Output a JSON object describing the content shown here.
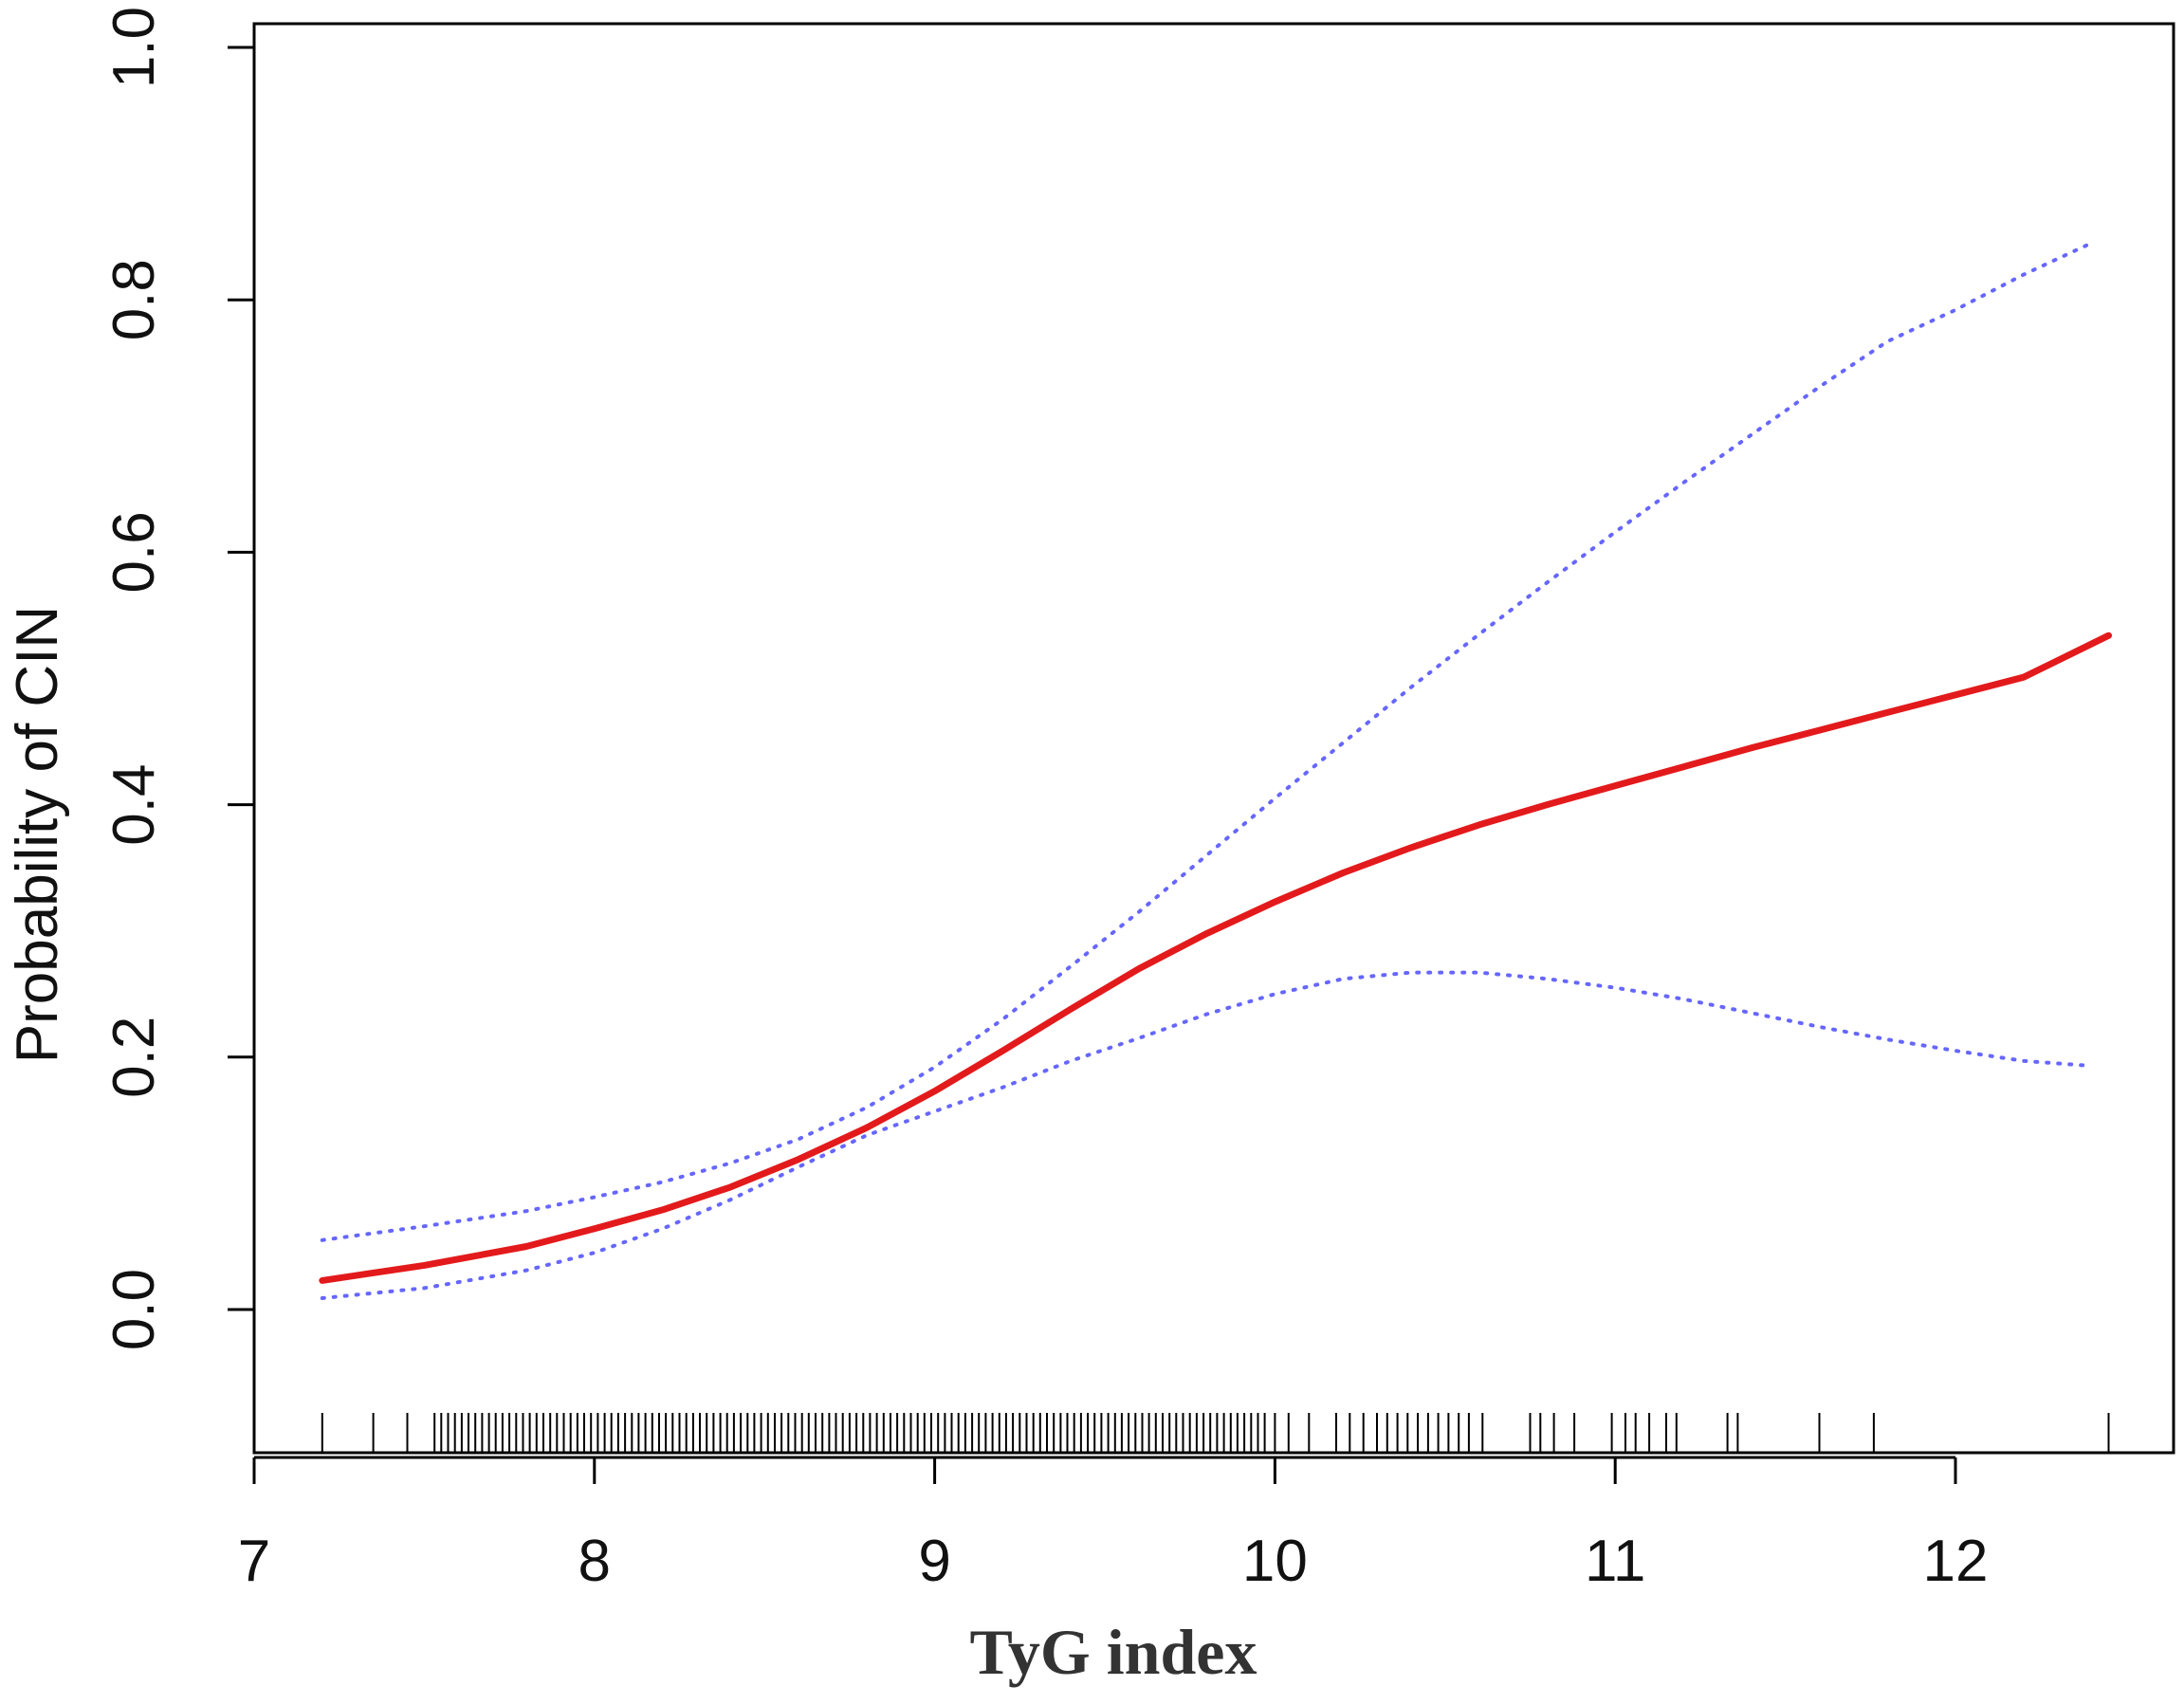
{
  "chart_data": {
    "type": "line",
    "title": "",
    "xlabel": "TyG index",
    "ylabel": "Probability of CIN",
    "xlim": [
      7,
      12.6
    ],
    "ylim": [
      -0.12,
      1.0
    ],
    "x_ticks": [
      7,
      8,
      9,
      10,
      11,
      12
    ],
    "y_ticks": [
      0.0,
      0.2,
      0.4,
      0.6,
      0.8,
      1.0
    ],
    "x_tick_labels": [
      "7",
      "8",
      "9",
      "10",
      "11",
      "12"
    ],
    "y_tick_labels": [
      "0.0",
      "0.2",
      "0.4",
      "0.6",
      "0.8",
      "1.0"
    ],
    "grid": false,
    "legend": "none",
    "colors": {
      "estimate": "#e31a1c",
      "ci": "#6666ff",
      "rug": "#000000",
      "axis": "#000000"
    },
    "series": [
      {
        "role": "estimate",
        "x": [
          7.2,
          7.5,
          7.8,
          8.0,
          8.2,
          8.4,
          8.6,
          8.8,
          9.0,
          9.2,
          9.4,
          9.6,
          9.8,
          10.0,
          10.2,
          10.4,
          10.6,
          10.8,
          11.0,
          11.2,
          11.4,
          11.6,
          11.8,
          12.0,
          12.2,
          12.45
        ],
        "values": [
          0.023,
          0.035,
          0.05,
          0.064,
          0.079,
          0.097,
          0.119,
          0.144,
          0.173,
          0.205,
          0.238,
          0.27,
          0.298,
          0.323,
          0.346,
          0.366,
          0.384,
          0.4,
          0.415,
          0.43,
          0.445,
          0.459,
          0.473,
          0.487,
          0.501,
          0.534
        ]
      },
      {
        "role": "upper",
        "x": [
          7.2,
          7.5,
          7.8,
          8.0,
          8.2,
          8.4,
          8.6,
          8.8,
          9.0,
          9.2,
          9.4,
          9.6,
          9.8,
          10.0,
          10.2,
          10.4,
          10.6,
          10.8,
          11.0,
          11.2,
          11.4,
          11.6,
          11.8,
          12.0,
          12.2,
          12.4
        ],
        "values": [
          0.055,
          0.066,
          0.078,
          0.089,
          0.101,
          0.116,
          0.135,
          0.16,
          0.192,
          0.23,
          0.272,
          0.315,
          0.36,
          0.405,
          0.449,
          0.493,
          0.535,
          0.576,
          0.616,
          0.655,
          0.693,
          0.731,
          0.767,
          0.792,
          0.82,
          0.845
        ]
      },
      {
        "role": "lower",
        "x": [
          7.2,
          7.5,
          7.8,
          8.0,
          8.2,
          8.4,
          8.6,
          8.8,
          9.0,
          9.2,
          9.4,
          9.6,
          9.8,
          10.0,
          10.2,
          10.4,
          10.6,
          10.8,
          11.0,
          11.2,
          11.4,
          11.6,
          11.8,
          12.0,
          12.2,
          12.4
        ],
        "values": [
          0.009,
          0.017,
          0.031,
          0.045,
          0.064,
          0.087,
          0.113,
          0.138,
          0.157,
          0.176,
          0.197,
          0.215,
          0.234,
          0.25,
          0.262,
          0.267,
          0.267,
          0.262,
          0.255,
          0.246,
          0.235,
          0.224,
          0.214,
          0.205,
          0.197,
          0.193
        ]
      }
    ],
    "rug": [
      7.2,
      7.35,
      7.45,
      7.53,
      7.55,
      7.57,
      7.59,
      7.61,
      7.63,
      7.65,
      7.67,
      7.69,
      7.71,
      7.73,
      7.75,
      7.77,
      7.79,
      7.81,
      7.83,
      7.85,
      7.87,
      7.89,
      7.91,
      7.93,
      7.95,
      7.97,
      7.99,
      8.01,
      8.03,
      8.05,
      8.07,
      8.09,
      8.11,
      8.13,
      8.15,
      8.17,
      8.19,
      8.21,
      8.23,
      8.25,
      8.27,
      8.29,
      8.31,
      8.33,
      8.35,
      8.37,
      8.39,
      8.41,
      8.43,
      8.45,
      8.47,
      8.49,
      8.51,
      8.53,
      8.55,
      8.57,
      8.59,
      8.61,
      8.63,
      8.65,
      8.67,
      8.69,
      8.71,
      8.73,
      8.75,
      8.77,
      8.79,
      8.81,
      8.83,
      8.85,
      8.87,
      8.89,
      8.91,
      8.93,
      8.95,
      8.97,
      8.99,
      9.01,
      9.03,
      9.05,
      9.07,
      9.09,
      9.11,
      9.13,
      9.15,
      9.17,
      9.19,
      9.21,
      9.23,
      9.25,
      9.27,
      9.29,
      9.31,
      9.33,
      9.35,
      9.37,
      9.39,
      9.41,
      9.43,
      9.45,
      9.47,
      9.49,
      9.51,
      9.53,
      9.55,
      9.57,
      9.59,
      9.61,
      9.63,
      9.65,
      9.67,
      9.69,
      9.71,
      9.73,
      9.75,
      9.77,
      9.79,
      9.81,
      9.83,
      9.85,
      9.87,
      9.89,
      9.91,
      9.93,
      9.95,
      9.97,
      10.0,
      10.04,
      10.1,
      10.18,
      10.22,
      10.26,
      10.3,
      10.33,
      10.36,
      10.39,
      10.42,
      10.45,
      10.48,
      10.51,
      10.54,
      10.57,
      10.61,
      10.75,
      10.78,
      10.82,
      10.88,
      10.99,
      11.03,
      11.06,
      11.1,
      11.15,
      11.18,
      11.33,
      11.36,
      11.6,
      11.76,
      12.45
    ]
  }
}
